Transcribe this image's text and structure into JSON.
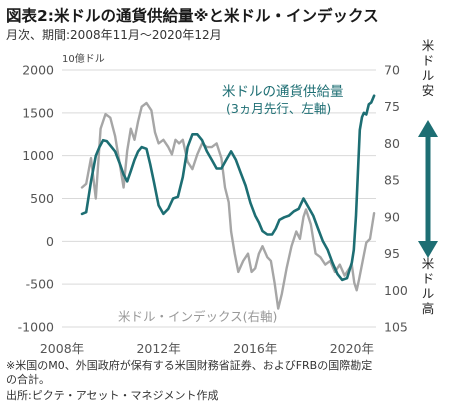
{
  "header": {
    "title": "図表2:米ドルの通貨供給量※と米ドル・インデックス",
    "subtitle": "月次、期間:2008年11月～2020年12月"
  },
  "footnotes": {
    "note1": "※米国のM0、外国政府が保有する米国財務省証券、およびFRBの国際勘定",
    "note2": "の合計。",
    "source": "出所:ピクテ・アセット・マネジメント作成"
  },
  "chart_data": {
    "type": "line",
    "left_axis": {
      "unit_label": "10億ドル",
      "range": [
        -1000,
        2000
      ],
      "ticks": [
        "2000",
        "1500",
        "1000",
        "500",
        "0",
        "-500",
        "-1000"
      ]
    },
    "right_axis": {
      "range": [
        70,
        105
      ],
      "inverted": true,
      "ticks": [
        "70",
        "75",
        "80",
        "85",
        "90",
        "95",
        "100",
        "105"
      ],
      "top_label": "米ドル安",
      "bottom_label": "米ドル高"
    },
    "x_axis": {
      "range": [
        2008,
        2021
      ],
      "ticks": [
        "2008年",
        "2012年",
        "2016年",
        "2020年"
      ]
    },
    "grid": "horizontal",
    "series": [
      {
        "name": "米ドルの通貨供給量",
        "name_sub": "(3ヵ月先行、左軸)",
        "color": "#1d6e73",
        "axis": "left",
        "x": [
          2008.83,
          2009.0,
          2009.2,
          2009.4,
          2009.55,
          2009.7,
          2009.85,
          2010.0,
          2010.2,
          2010.4,
          2010.55,
          2010.7,
          2010.85,
          2011.0,
          2011.15,
          2011.3,
          2011.5,
          2011.65,
          2011.8,
          2012.0,
          2012.2,
          2012.4,
          2012.6,
          2012.8,
          2013.0,
          2013.2,
          2013.4,
          2013.6,
          2013.8,
          2014.0,
          2014.2,
          2014.4,
          2014.6,
          2014.8,
          2015.0,
          2015.2,
          2015.4,
          2015.6,
          2015.8,
          2016.0,
          2016.15,
          2016.3,
          2016.5,
          2016.7,
          2016.85,
          2017.0,
          2017.2,
          2017.4,
          2017.6,
          2017.8,
          2018.0,
          2018.2,
          2018.4,
          2018.6,
          2018.8,
          2019.0,
          2019.2,
          2019.4,
          2019.6,
          2019.8,
          2020.0,
          2020.08,
          2020.17,
          2020.25,
          2020.33,
          2020.42,
          2020.5,
          2020.6,
          2020.7,
          2020.8,
          2020.92
        ],
        "values": [
          320,
          340,
          700,
          1000,
          1100,
          1180,
          1170,
          1120,
          1050,
          900,
          780,
          700,
          820,
          950,
          1050,
          1100,
          1080,
          900,
          700,
          420,
          320,
          380,
          500,
          520,
          750,
          1100,
          1250,
          1250,
          1180,
          1050,
          950,
          850,
          850,
          950,
          1050,
          950,
          800,
          650,
          450,
          300,
          220,
          120,
          80,
          80,
          150,
          250,
          280,
          300,
          350,
          380,
          500,
          400,
          300,
          150,
          0,
          -100,
          -250,
          -380,
          -450,
          -430,
          -250,
          -100,
          300,
          800,
          1300,
          1450,
          1500,
          1480,
          1600,
          1620,
          1700
        ]
      },
      {
        "name": "米ドル・インデックス(右軸)",
        "color": "#a6a6a6",
        "axis": "right",
        "x": [
          2008.83,
          2009.0,
          2009.2,
          2009.4,
          2009.6,
          2009.8,
          2010.0,
          2010.2,
          2010.4,
          2010.55,
          2010.7,
          2010.85,
          2011.0,
          2011.15,
          2011.3,
          2011.5,
          2011.7,
          2011.85,
          2012.0,
          2012.2,
          2012.4,
          2012.55,
          2012.7,
          2012.85,
          2013.0,
          2013.2,
          2013.4,
          2013.6,
          2013.8,
          2014.0,
          2014.2,
          2014.4,
          2014.6,
          2014.75,
          2014.9,
          2015.0,
          2015.15,
          2015.3,
          2015.5,
          2015.7,
          2015.85,
          2016.0,
          2016.15,
          2016.3,
          2016.5,
          2016.65,
          2016.8,
          2016.95,
          2017.1,
          2017.3,
          2017.5,
          2017.7,
          2017.85,
          2018.0,
          2018.1,
          2018.3,
          2018.5,
          2018.7,
          2018.9,
          2019.1,
          2019.3,
          2019.5,
          2019.7,
          2019.9,
          2020.0,
          2020.1,
          2020.2,
          2020.3,
          2020.45,
          2020.6,
          2020.75,
          2020.92
        ],
        "values": [
          86.0,
          85.5,
          82.0,
          87.5,
          78.0,
          76.0,
          76.5,
          79.0,
          83.0,
          86.0,
          81.0,
          78.0,
          79.5,
          77.0,
          75.0,
          74.5,
          75.5,
          78.5,
          80.0,
          79.5,
          80.5,
          81.5,
          79.5,
          80.0,
          79.5,
          82.5,
          83.5,
          81.5,
          80.0,
          80.5,
          80.5,
          80.0,
          82.0,
          86.0,
          88.0,
          92.0,
          95.0,
          97.5,
          96.0,
          95.0,
          97.5,
          97.0,
          95.0,
          94.0,
          95.5,
          96.0,
          99.0,
          102.5,
          100.5,
          97.0,
          94.0,
          92.0,
          93.0,
          90.0,
          89.0,
          91.0,
          95.0,
          95.5,
          96.5,
          96.0,
          97.5,
          96.5,
          98.0,
          97.0,
          96.5,
          99.0,
          100.0,
          98.5,
          96.0,
          93.5,
          93.0,
          89.5
        ]
      }
    ]
  }
}
